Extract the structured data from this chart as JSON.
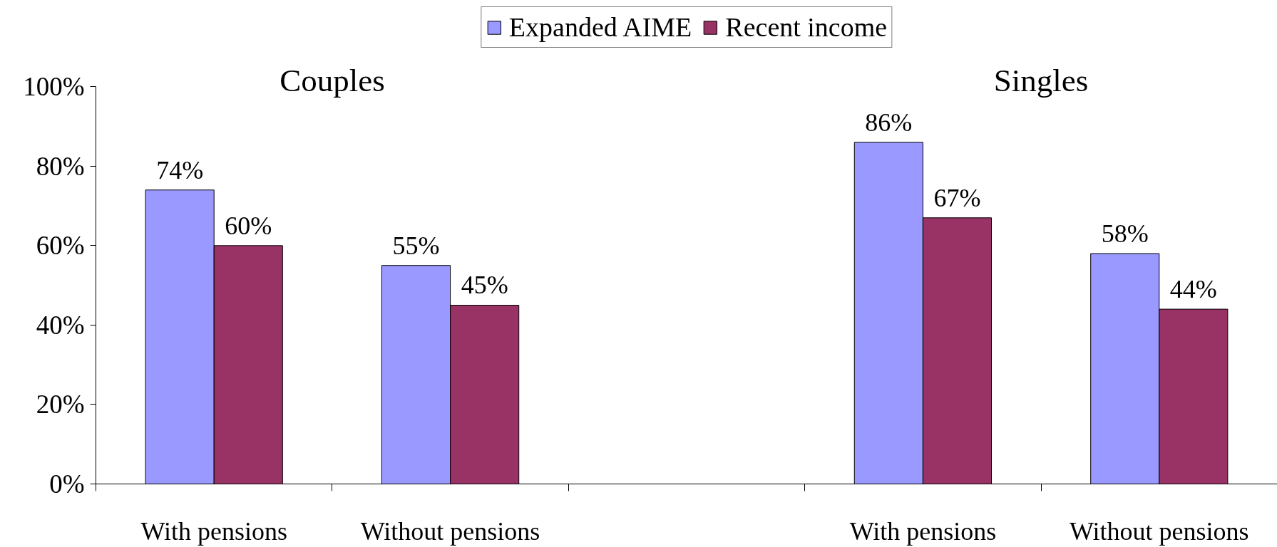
{
  "chart_data": {
    "type": "bar",
    "categories": [
      "With pensions",
      "Without pensions",
      null,
      "With pensions",
      "Without pensions"
    ],
    "series": [
      {
        "name": "Expanded AIME",
        "color": "#9999ff",
        "values": [
          74,
          55,
          null,
          86,
          58
        ],
        "value_labels": [
          "74%",
          "55%",
          null,
          "86%",
          "58%"
        ]
      },
      {
        "name": "Recent income",
        "color": "#993366",
        "values": [
          60,
          45,
          null,
          67,
          44
        ],
        "value_labels": [
          "60%",
          "45%",
          null,
          "67%",
          "44%"
        ]
      }
    ],
    "annotations": [
      "Couples",
      "Singles"
    ],
    "ylim": [
      0,
      100
    ],
    "yticks": [
      {
        "value": 0,
        "label": "0%"
      },
      {
        "value": 20,
        "label": "20%"
      },
      {
        "value": 40,
        "label": "40%"
      },
      {
        "value": 60,
        "label": "60%"
      },
      {
        "value": 80,
        "label": "80%"
      },
      {
        "value": 100,
        "label": "100%"
      }
    ],
    "grid": false,
    "legend": "top"
  }
}
